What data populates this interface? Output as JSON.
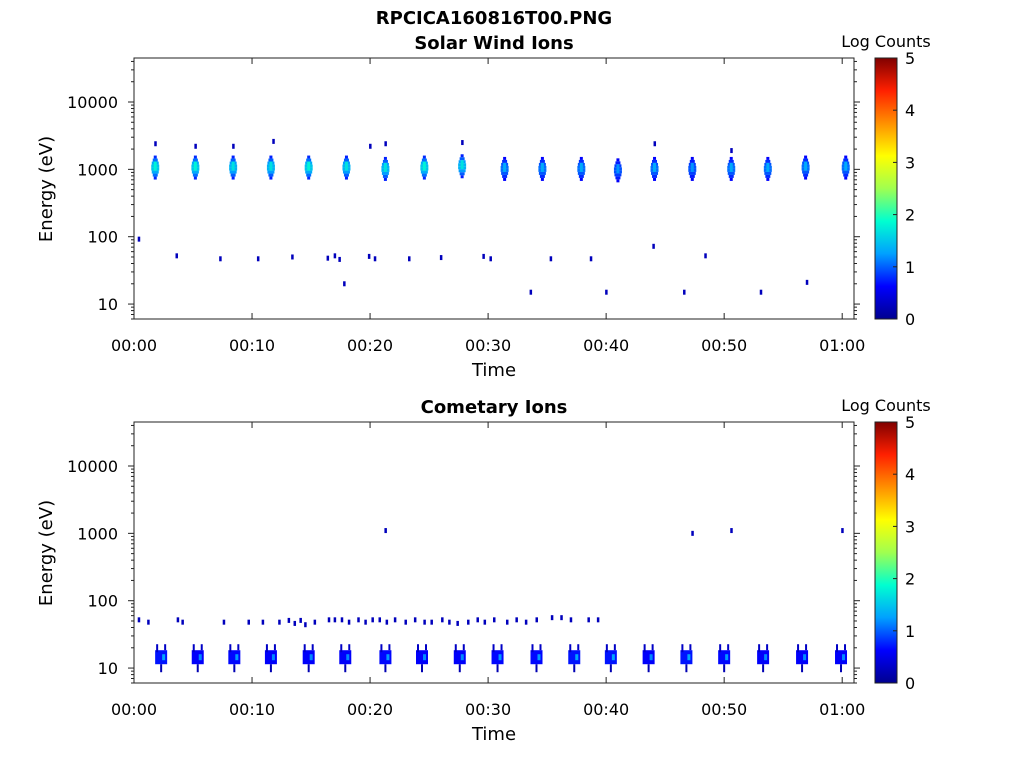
{
  "figure_title": "RPCICA160816T00.PNG",
  "colorbar": {
    "label": "Log Counts",
    "ticks": [
      "0",
      "1",
      "2",
      "3",
      "4",
      "5"
    ],
    "range": [
      0,
      5
    ],
    "colors": [
      "#00008f",
      "#0000ff",
      "#00a0ff",
      "#00ffd0",
      "#a0ff50",
      "#ffff00",
      "#ff9000",
      "#ff2000",
      "#800000"
    ]
  },
  "chart_data": [
    {
      "type": "heatmap",
      "title": "Solar Wind Ions",
      "xlabel": "Time",
      "ylabel": "Energy (eV)",
      "x_ticks": [
        "00:00",
        "00:10",
        "00:20",
        "00:30",
        "00:40",
        "00:50",
        "01:00"
      ],
      "y_ticks": [
        "10",
        "100",
        "1000",
        "10000"
      ],
      "y_scale": "log",
      "xlim_minutes": [
        0,
        61
      ],
      "ylim_eV": [
        6,
        45000
      ],
      "blobs": [
        {
          "t": 1.8,
          "e": 1100,
          "v": 1.0
        },
        {
          "t": 5.2,
          "e": 1100,
          "v": 1.0
        },
        {
          "t": 8.4,
          "e": 1100,
          "v": 0.9
        },
        {
          "t": 11.6,
          "e": 1100,
          "v": 0.9
        },
        {
          "t": 14.8,
          "e": 1100,
          "v": 1.0
        },
        {
          "t": 18.0,
          "e": 1100,
          "v": 0.9
        },
        {
          "t": 21.3,
          "e": 1050,
          "v": 0.9
        },
        {
          "t": 24.6,
          "e": 1100,
          "v": 1.0
        },
        {
          "t": 27.8,
          "e": 1150,
          "v": 0.9
        },
        {
          "t": 31.4,
          "e": 1050,
          "v": 0.6
        },
        {
          "t": 34.6,
          "e": 1050,
          "v": 0.6
        },
        {
          "t": 37.9,
          "e": 1050,
          "v": 0.6
        },
        {
          "t": 41.0,
          "e": 1000,
          "v": 0.5
        },
        {
          "t": 44.1,
          "e": 1050,
          "v": 0.6
        },
        {
          "t": 47.3,
          "e": 1050,
          "v": 0.5
        },
        {
          "t": 50.6,
          "e": 1050,
          "v": 0.6
        },
        {
          "t": 53.7,
          "e": 1050,
          "v": 0.6
        },
        {
          "t": 56.9,
          "e": 1100,
          "v": 0.6
        },
        {
          "t": 60.3,
          "e": 1100,
          "v": 0.6
        }
      ],
      "specks": [
        {
          "t": 0.4,
          "e": 92
        },
        {
          "t": 3.6,
          "e": 52
        },
        {
          "t": 7.3,
          "e": 47
        },
        {
          "t": 10.5,
          "e": 47
        },
        {
          "t": 13.4,
          "e": 50
        },
        {
          "t": 16.4,
          "e": 48
        },
        {
          "t": 17.0,
          "e": 52
        },
        {
          "t": 17.4,
          "e": 46
        },
        {
          "t": 19.9,
          "e": 51
        },
        {
          "t": 20.4,
          "e": 47
        },
        {
          "t": 23.3,
          "e": 47
        },
        {
          "t": 26.0,
          "e": 49
        },
        {
          "t": 29.6,
          "e": 51
        },
        {
          "t": 30.2,
          "e": 47
        },
        {
          "t": 35.3,
          "e": 47
        },
        {
          "t": 38.7,
          "e": 47
        },
        {
          "t": 44.0,
          "e": 72
        },
        {
          "t": 48.4,
          "e": 52
        },
        {
          "t": 17.8,
          "e": 20
        },
        {
          "t": 33.6,
          "e": 15
        },
        {
          "t": 40.0,
          "e": 15
        },
        {
          "t": 46.6,
          "e": 15
        },
        {
          "t": 53.1,
          "e": 15
        },
        {
          "t": 57.0,
          "e": 21
        },
        {
          "t": 1.8,
          "e": 2400
        },
        {
          "t": 5.2,
          "e": 2200
        },
        {
          "t": 8.4,
          "e": 2200
        },
        {
          "t": 11.8,
          "e": 2600
        },
        {
          "t": 20.0,
          "e": 2200
        },
        {
          "t": 21.3,
          "e": 2400
        },
        {
          "t": 27.8,
          "e": 2500
        },
        {
          "t": 44.1,
          "e": 2400
        },
        {
          "t": 50.6,
          "e": 1900
        }
      ]
    },
    {
      "type": "heatmap",
      "title": "Cometary Ions",
      "xlabel": "Time",
      "ylabel": "Energy (eV)",
      "x_ticks": [
        "00:00",
        "00:10",
        "00:20",
        "00:30",
        "00:40",
        "00:50",
        "01:00"
      ],
      "y_ticks": [
        "10",
        "100",
        "1000",
        "10000"
      ],
      "y_scale": "log",
      "xlim_minutes": [
        0,
        61
      ],
      "ylim_eV": [
        6,
        45000
      ],
      "blobs": [
        {
          "t": 2.3,
          "e": 14,
          "v": 1.0
        },
        {
          "t": 5.4,
          "e": 14,
          "v": 0.8
        },
        {
          "t": 8.5,
          "e": 14,
          "v": 0.9
        },
        {
          "t": 11.6,
          "e": 14,
          "v": 0.8
        },
        {
          "t": 14.8,
          "e": 14,
          "v": 0.8
        },
        {
          "t": 17.9,
          "e": 14,
          "v": 0.8
        },
        {
          "t": 21.3,
          "e": 14,
          "v": 0.9
        },
        {
          "t": 24.4,
          "e": 14,
          "v": 0.8
        },
        {
          "t": 27.6,
          "e": 14,
          "v": 0.8
        },
        {
          "t": 30.8,
          "e": 14,
          "v": 0.9
        },
        {
          "t": 34.1,
          "e": 14,
          "v": 0.9
        },
        {
          "t": 37.3,
          "e": 14,
          "v": 1.0
        },
        {
          "t": 40.4,
          "e": 14,
          "v": 1.0
        },
        {
          "t": 43.6,
          "e": 14,
          "v": 0.8
        },
        {
          "t": 46.8,
          "e": 14,
          "v": 1.0
        },
        {
          "t": 50.0,
          "e": 14,
          "v": 0.9
        },
        {
          "t": 53.3,
          "e": 14,
          "v": 0.8
        },
        {
          "t": 56.6,
          "e": 14,
          "v": 0.8
        },
        {
          "t": 59.9,
          "e": 14,
          "v": 0.8
        }
      ],
      "specks": [
        {
          "t": 0.4,
          "e": 52
        },
        {
          "t": 1.2,
          "e": 48
        },
        {
          "t": 3.7,
          "e": 52
        },
        {
          "t": 4.1,
          "e": 48
        },
        {
          "t": 7.6,
          "e": 48
        },
        {
          "t": 9.7,
          "e": 48
        },
        {
          "t": 10.9,
          "e": 48
        },
        {
          "t": 12.3,
          "e": 48
        },
        {
          "t": 13.1,
          "e": 51
        },
        {
          "t": 13.6,
          "e": 46
        },
        {
          "t": 14.1,
          "e": 51
        },
        {
          "t": 14.5,
          "e": 44
        },
        {
          "t": 15.3,
          "e": 48
        },
        {
          "t": 16.5,
          "e": 52
        },
        {
          "t": 17.0,
          "e": 52
        },
        {
          "t": 17.6,
          "e": 52
        },
        {
          "t": 18.2,
          "e": 48
        },
        {
          "t": 19.0,
          "e": 52
        },
        {
          "t": 19.6,
          "e": 48
        },
        {
          "t": 20.2,
          "e": 52
        },
        {
          "t": 20.8,
          "e": 52
        },
        {
          "t": 21.4,
          "e": 48
        },
        {
          "t": 22.1,
          "e": 52
        },
        {
          "t": 23.0,
          "e": 48
        },
        {
          "t": 23.8,
          "e": 52
        },
        {
          "t": 24.6,
          "e": 48
        },
        {
          "t": 25.2,
          "e": 48
        },
        {
          "t": 26.1,
          "e": 52
        },
        {
          "t": 26.7,
          "e": 48
        },
        {
          "t": 27.4,
          "e": 46
        },
        {
          "t": 28.3,
          "e": 48
        },
        {
          "t": 29.1,
          "e": 52
        },
        {
          "t": 29.7,
          "e": 48
        },
        {
          "t": 30.5,
          "e": 52
        },
        {
          "t": 31.6,
          "e": 48
        },
        {
          "t": 32.4,
          "e": 52
        },
        {
          "t": 33.2,
          "e": 48
        },
        {
          "t": 34.1,
          "e": 52
        },
        {
          "t": 35.4,
          "e": 56
        },
        {
          "t": 36.2,
          "e": 56
        },
        {
          "t": 37.0,
          "e": 52
        },
        {
          "t": 38.5,
          "e": 52
        },
        {
          "t": 39.3,
          "e": 52
        },
        {
          "t": 21.3,
          "e": 1100
        },
        {
          "t": 47.3,
          "e": 1000
        },
        {
          "t": 50.6,
          "e": 1100
        },
        {
          "t": 60.0,
          "e": 1100
        }
      ]
    }
  ]
}
